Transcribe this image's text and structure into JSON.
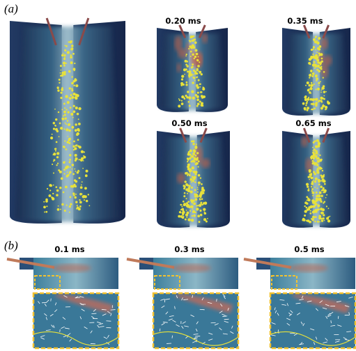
{
  "panels": [
    {
      "label": "(a)",
      "frames": [
        "0.20 ms",
        "0.35 ms",
        "0.50 ms",
        "0.65 ms"
      ]
    },
    {
      "label": "(b)",
      "frames": [
        "0.1 ms",
        "0.3 ms",
        "0.5 ms"
      ]
    }
  ]
}
